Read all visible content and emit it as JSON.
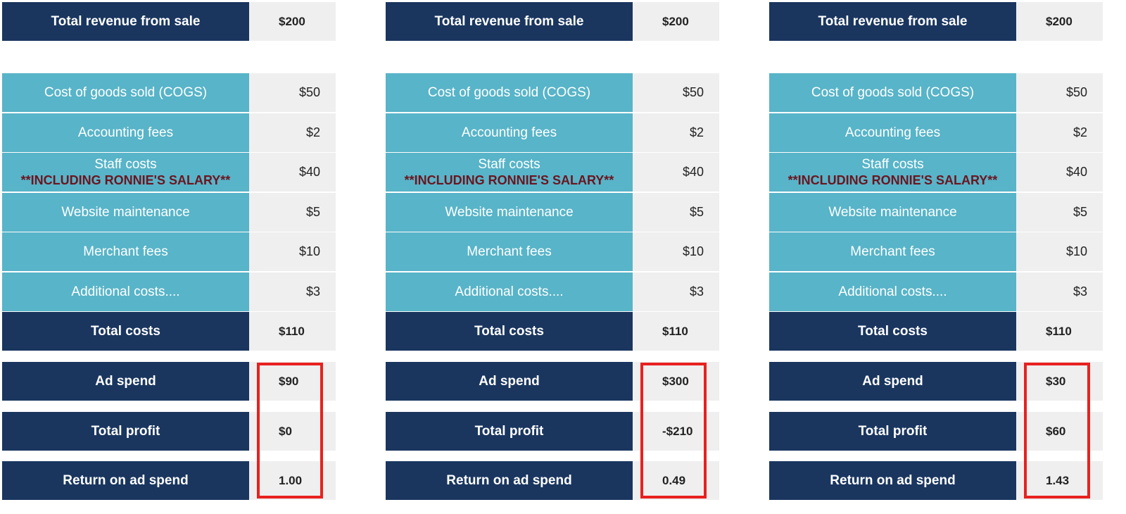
{
  "panels": [
    {
      "revenue": {
        "label": "Total revenue from sale",
        "value": "$200"
      },
      "costs": [
        {
          "label": "Cost of goods sold (COGS)",
          "value": "$50"
        },
        {
          "label": "Accounting fees",
          "value": "$2"
        },
        {
          "label": "Staff costs",
          "note": "**INCLUDING RONNIE'S SALARY**",
          "value": "$40"
        },
        {
          "label": "Website maintenance",
          "value": "$5"
        },
        {
          "label": "Merchant fees",
          "value": "$10"
        },
        {
          "label": "Additional costs....",
          "value": "$3"
        }
      ],
      "total_costs": {
        "label": "Total costs",
        "value": "$110"
      },
      "ad_spend": {
        "label": "Ad spend",
        "value": "$90"
      },
      "total_profit": {
        "label": "Total profit",
        "value": "$0"
      },
      "roas": {
        "label": "Return on ad spend",
        "value": "1.00"
      }
    },
    {
      "revenue": {
        "label": "Total revenue from sale",
        "value": "$200"
      },
      "costs": [
        {
          "label": "Cost of goods sold (COGS)",
          "value": "$50"
        },
        {
          "label": "Accounting fees",
          "value": "$2"
        },
        {
          "label": "Staff costs",
          "note": "**INCLUDING RONNIE'S SALARY**",
          "value": "$40"
        },
        {
          "label": "Website maintenance",
          "value": "$5"
        },
        {
          "label": "Merchant fees",
          "value": "$10"
        },
        {
          "label": "Additional costs....",
          "value": "$3"
        }
      ],
      "total_costs": {
        "label": "Total costs",
        "value": "$110"
      },
      "ad_spend": {
        "label": "Ad spend",
        "value": "$300"
      },
      "total_profit": {
        "label": "Total profit",
        "value": "-$210"
      },
      "roas": {
        "label": "Return on ad spend",
        "value": "0.49"
      }
    },
    {
      "revenue": {
        "label": "Total revenue from sale",
        "value": "$200"
      },
      "costs": [
        {
          "label": "Cost of goods sold (COGS)",
          "value": "$50"
        },
        {
          "label": "Accounting fees",
          "value": "$2"
        },
        {
          "label": "Staff costs",
          "note": "**INCLUDING RONNIE'S SALARY**",
          "value": "$40"
        },
        {
          "label": "Website maintenance",
          "value": "$5"
        },
        {
          "label": "Merchant fees",
          "value": "$10"
        },
        {
          "label": "Additional costs....",
          "value": "$3"
        }
      ],
      "total_costs": {
        "label": "Total costs",
        "value": "$110"
      },
      "ad_spend": {
        "label": "Ad spend",
        "value": "$30"
      },
      "total_profit": {
        "label": "Total profit",
        "value": "$60"
      },
      "roas": {
        "label": "Return on ad spend",
        "value": "1.43"
      }
    }
  ],
  "colors": {
    "dark_navy": "#1a365f",
    "teal": "#58b4c8",
    "value_bg": "#efefef",
    "highlight_red": "#e8211f",
    "note_text": "#6b1520"
  }
}
